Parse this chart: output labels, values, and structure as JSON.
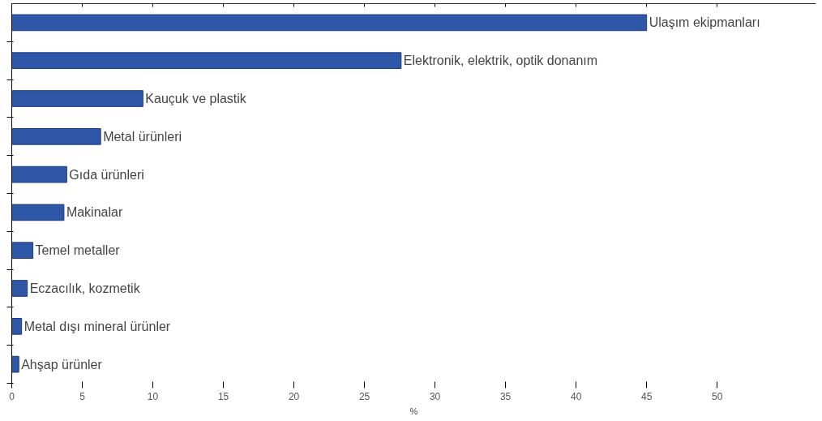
{
  "chart_data": {
    "type": "bar",
    "orientation": "horizontal",
    "xlabel": "%",
    "categories": [
      "Ulaşım ekipmanları",
      "Elektronik, elektrik, optik donanım",
      "Kauçuk ve plastik",
      "Metal ürünleri",
      "Gıda ürünleri",
      "Makinalar",
      "Temel metaller",
      "Eczacılık, kozmetik",
      "Metal dışı mineral ürünler",
      "Ahşap ürünler"
    ],
    "values": [
      45.0,
      27.6,
      9.3,
      6.3,
      3.9,
      3.7,
      1.5,
      1.1,
      0.7,
      0.5
    ],
    "color": "#2e57a8",
    "xlim": [
      0,
      57
    ],
    "xticks": [
      0,
      5,
      10,
      15,
      20,
      25,
      30,
      35,
      40,
      45,
      50
    ],
    "grid": false,
    "tick_labels": "x"
  }
}
